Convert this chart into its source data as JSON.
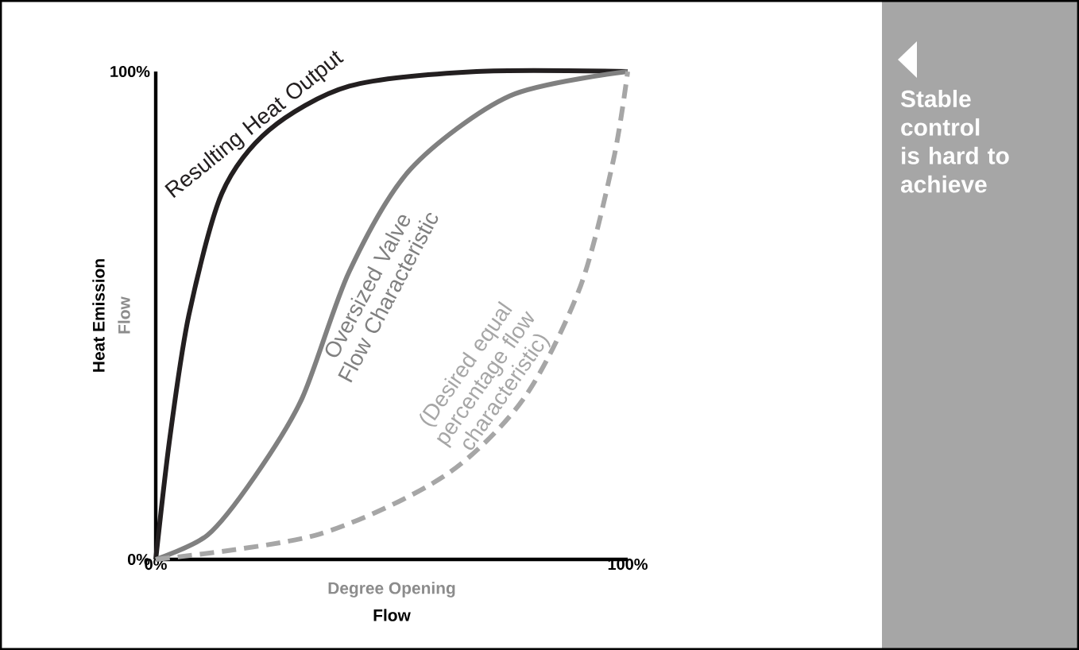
{
  "chart_data": {
    "type": "line",
    "relative": false,
    "xlabel": "Degree Opening",
    "ylabel": "Heat Emission",
    "annotations": [
      "Flow",
      "Flow",
      "Stable control is hard to achieve"
    ],
    "xlim": [
      0,
      100
    ],
    "ylim": [
      0,
      100
    ],
    "xticks": [
      {
        "value": 0,
        "label": "0%"
      },
      {
        "value": 100,
        "label": "100%"
      }
    ],
    "yticks": [
      {
        "value": 0,
        "label": "0%"
      },
      {
        "value": 100,
        "label": "100%"
      }
    ],
    "grid": false,
    "legend": false,
    "marker": "none",
    "series": [
      {
        "name": "Resulting Heat Output",
        "color": "#231f20",
        "line_style": "solid",
        "x": [
          0,
          3,
          7,
          14,
          24,
          41,
          68,
          100
        ],
        "values": [
          0,
          25,
          50,
          75,
          88,
          97,
          100,
          100
        ]
      },
      {
        "name": "Oversized Valve Flow Characteristic",
        "color": "#808080",
        "line_style": "solid",
        "x": [
          0,
          11,
          21,
          31,
          41,
          54,
          75,
          100
        ],
        "values": [
          0,
          5,
          17,
          33,
          59,
          80,
          95,
          100
        ]
      },
      {
        "name": "(Desired equal percentage flow characteristic)",
        "color": "#a6a6a6",
        "line_style": "dashed",
        "x": [
          0,
          34,
          61,
          78,
          90,
          97,
          100
        ],
        "values": [
          0,
          5,
          17,
          33,
          56,
          82,
          100
        ]
      }
    ]
  }
}
